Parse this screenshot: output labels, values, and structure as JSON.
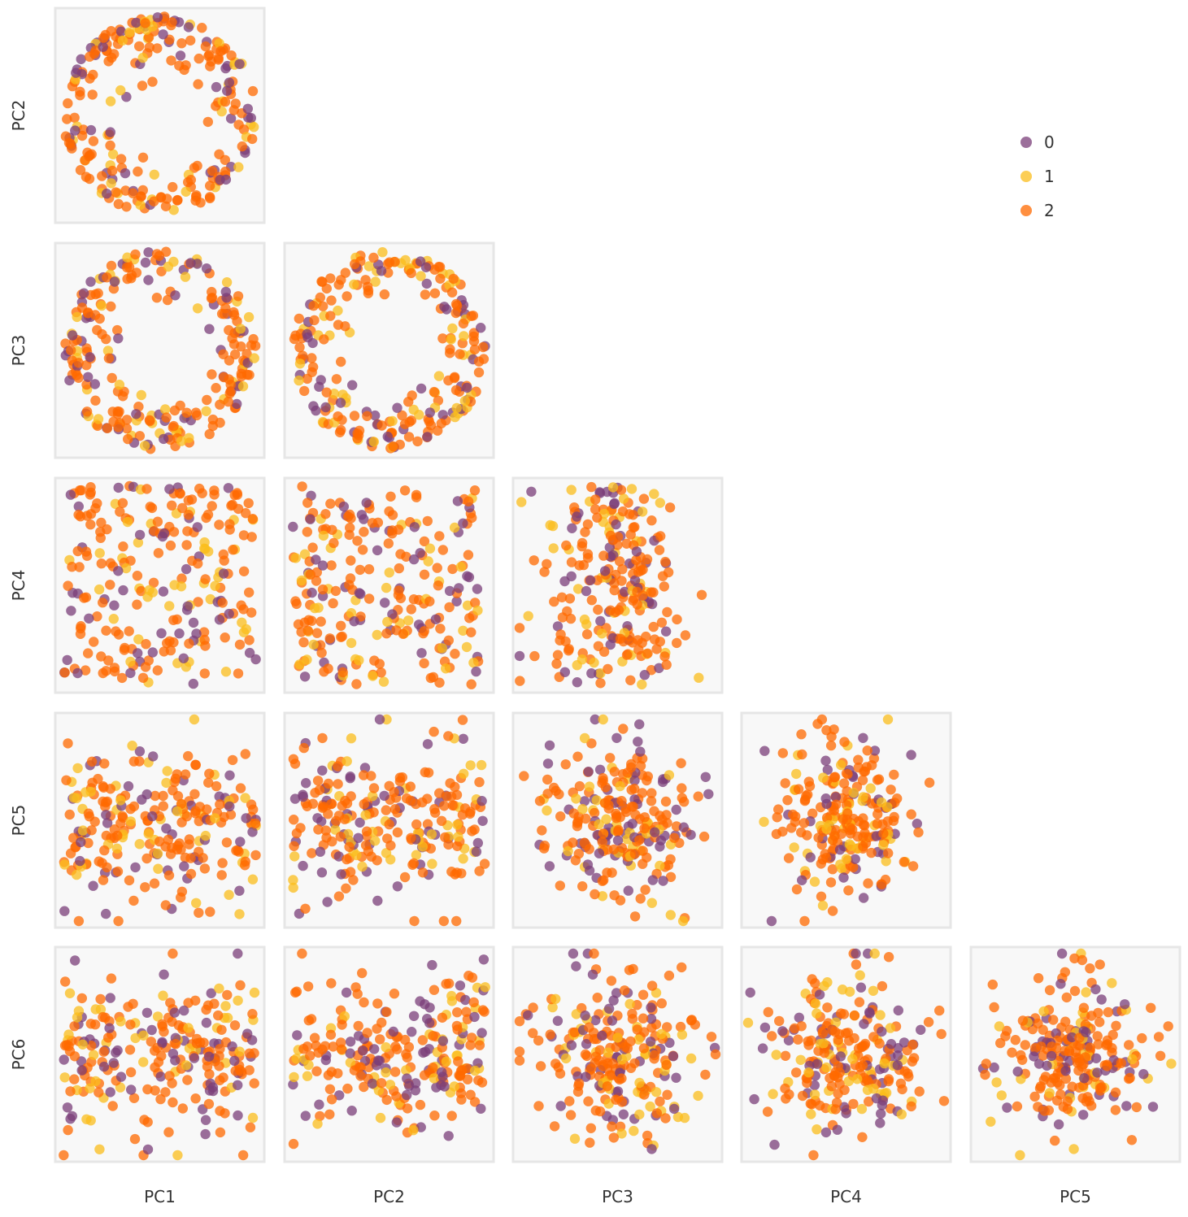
{
  "chart_data": {
    "type": "scatter",
    "subtype": "pairplot-lower-triangle",
    "title": "",
    "variables": [
      "PC1",
      "PC2",
      "PC3",
      "PC4",
      "PC5",
      "PC6"
    ],
    "row_labels": [
      "PC2",
      "PC3",
      "PC4",
      "PC5",
      "PC6"
    ],
    "column_labels": [
      "PC1",
      "PC2",
      "PC3",
      "PC4",
      "PC5"
    ],
    "axis_ranges": "not printed (no tick labels shown)",
    "grid": false,
    "legend": {
      "placement": "top-right",
      "entries": [
        {
          "label": "0",
          "color": "#7b3f7a"
        },
        {
          "label": "1",
          "color": "#fbbd1c"
        },
        {
          "label": "2",
          "color": "#ff6a00"
        }
      ]
    },
    "point_opacity": 0.75,
    "panel_background": "#f8f8f8",
    "panel_border": "#e6e6e6",
    "approx_points_per_panel": 240,
    "series": [
      {
        "name": "0",
        "color": "#7b3f7a",
        "note": "individual point values not legible"
      },
      {
        "name": "1",
        "color": "#fbbd1c",
        "note": "individual point values not legible"
      },
      {
        "name": "2",
        "color": "#ff6a00",
        "note": "individual point values not legible"
      }
    ]
  }
}
